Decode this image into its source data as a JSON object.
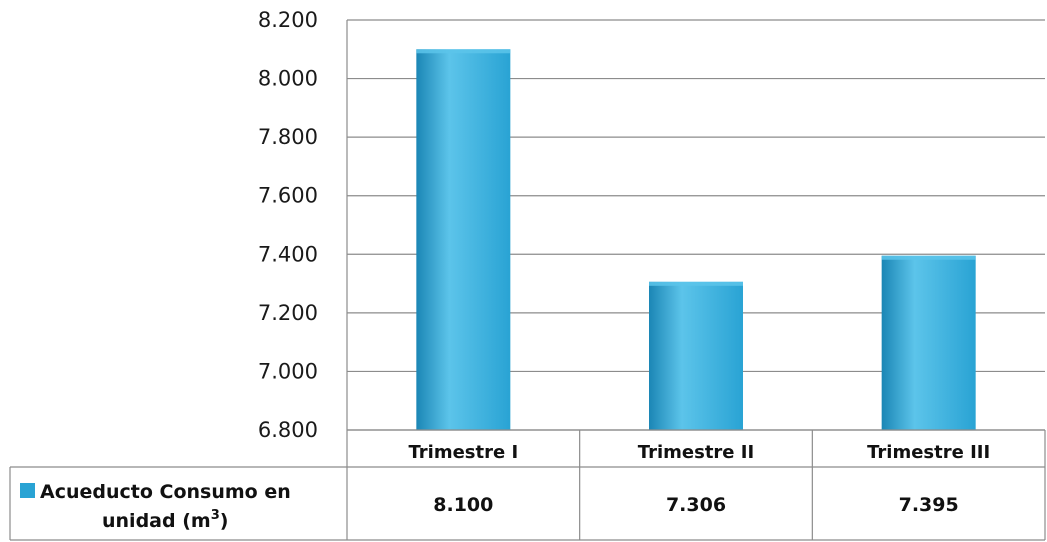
{
  "chart_data": {
    "type": "bar",
    "categories": [
      "Trimestre I",
      "Trimestre II",
      "Trimestre III"
    ],
    "series": [
      {
        "name": "Acueducto Consumo en unidad (m³)",
        "name_line1": "Acueducto Consumo en",
        "name_line2_main": "unidad (m",
        "name_line2_sup": "3",
        "name_line2_end": ")",
        "values": [
          8100,
          7306,
          7395
        ],
        "value_labels": [
          "8.100",
          "7.306",
          "7.395"
        ],
        "color": "#29a3d4"
      }
    ],
    "ylim": [
      6800,
      8200
    ],
    "yticks": [
      6800,
      7000,
      7200,
      7400,
      7600,
      7800,
      8000,
      8200
    ],
    "ytick_labels": [
      "6.800",
      "7.000",
      "7.200",
      "7.400",
      "7.600",
      "7.800",
      "8.000",
      "8.200"
    ],
    "grid": true,
    "legend": "data-table",
    "colors": {
      "bar": "#29a3d4",
      "bar_light": "#5cc4ea",
      "bar_dark": "#1b86b5",
      "grid": "#8c8c8c",
      "table_border": "#8c8c8c"
    }
  }
}
